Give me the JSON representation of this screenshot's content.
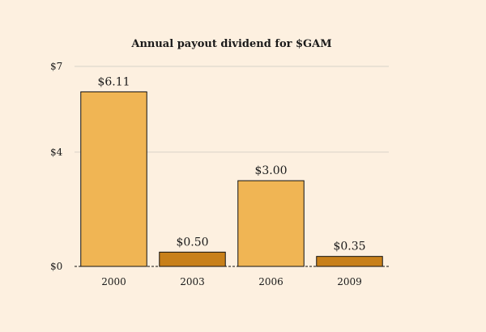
{
  "chart_data": {
    "type": "bar",
    "title": "Annual payout dividend for $GAM",
    "xlabel": "",
    "ylabel": "",
    "categories": [
      "2000",
      "2003",
      "2006",
      "2009"
    ],
    "values": [
      6.11,
      0.5,
      3.0,
      0.35
    ],
    "data_labels": [
      "$6.11",
      "$0.50",
      "$3.00",
      "$0.35"
    ],
    "ylim": [
      0,
      7
    ],
    "yticks": [
      0,
      4,
      7
    ],
    "ytick_labels": [
      "$0",
      "$4",
      "$7"
    ],
    "grid": true,
    "legend": "none",
    "colors": {
      "background": "#fdf0e0",
      "bar_high": "#f0b554",
      "bar_low": "#c8801a",
      "bar_stroke": "#111111",
      "grid": "#d8d2c8",
      "baseline": "#111111"
    }
  }
}
